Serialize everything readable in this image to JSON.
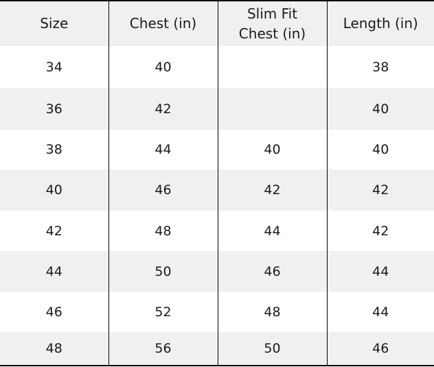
{
  "headers": [
    "Size",
    "Chest (in)",
    "Slim Fit Chest (in)",
    "Length (in)"
  ],
  "rows": [
    [
      "34",
      "40",
      "",
      "38"
    ],
    [
      "36",
      "42",
      "",
      "40"
    ],
    [
      "38",
      "44",
      "40",
      "40"
    ],
    [
      "40",
      "46",
      "42",
      "42"
    ],
    [
      "42",
      "48",
      "44",
      "42"
    ],
    [
      "44",
      "50",
      "46",
      "44"
    ],
    [
      "46",
      "52",
      "48",
      "44"
    ],
    [
      "48",
      "56",
      "50",
      "46"
    ]
  ],
  "colors": {
    "stripe": "#f0f0f0",
    "border": "#000000"
  }
}
